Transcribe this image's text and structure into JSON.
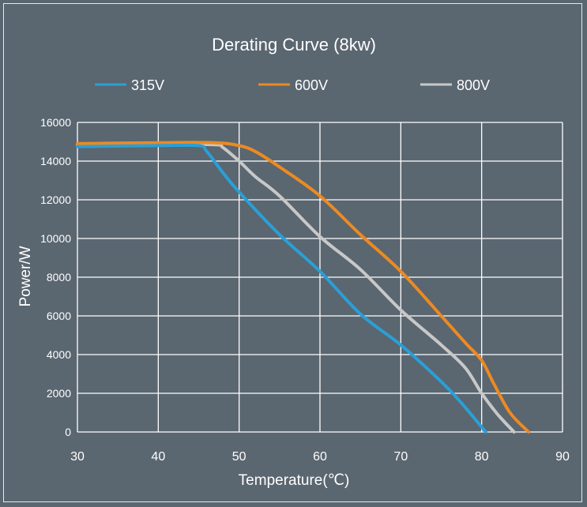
{
  "chart_data": {
    "type": "line",
    "title": "Derating Curve (8kw)",
    "xlabel": "Temperature(℃)",
    "ylabel": "Power/W",
    "xlim": [
      30,
      90
    ],
    "ylim": [
      0,
      16000
    ],
    "x_ticks": [
      "30",
      "40",
      "50",
      "60",
      "70",
      "80",
      "90"
    ],
    "y_ticks": [
      "0",
      "2000",
      "4000",
      "6000",
      "8000",
      "10000",
      "12000",
      "14000",
      "16000"
    ],
    "grid": true,
    "legend_position": "top",
    "series": [
      {
        "name": "315V",
        "color": "#2a9fd6",
        "points": [
          [
            30,
            14750
          ],
          [
            40,
            14800
          ],
          [
            45,
            14800
          ],
          [
            46,
            14500
          ],
          [
            48,
            13400
          ],
          [
            50,
            12400
          ],
          [
            55,
            10200
          ],
          [
            60,
            8300
          ],
          [
            65,
            6100
          ],
          [
            70,
            4500
          ],
          [
            75,
            2600
          ],
          [
            77.5,
            1500
          ],
          [
            80.5,
            0
          ]
        ]
      },
      {
        "name": "600V",
        "color": "#ec8a22",
        "points": [
          [
            30,
            14900
          ],
          [
            40,
            14950
          ],
          [
            47,
            14950
          ],
          [
            50,
            14800
          ],
          [
            52,
            14500
          ],
          [
            55,
            13700
          ],
          [
            60,
            12200
          ],
          [
            65,
            10200
          ],
          [
            70,
            8300
          ],
          [
            75,
            6000
          ],
          [
            78,
            4600
          ],
          [
            80,
            3700
          ],
          [
            81.5,
            2500
          ],
          [
            83.5,
            1000
          ],
          [
            85.8,
            0
          ]
        ]
      },
      {
        "name": "800V",
        "color": "#c8c8c8",
        "points": [
          [
            30,
            14800
          ],
          [
            40,
            14850
          ],
          [
            47,
            14850
          ],
          [
            48,
            14700
          ],
          [
            50,
            14000
          ],
          [
            52,
            13200
          ],
          [
            55,
            12200
          ],
          [
            60,
            10100
          ],
          [
            65,
            8400
          ],
          [
            70,
            6300
          ],
          [
            75,
            4500
          ],
          [
            78,
            3300
          ],
          [
            80,
            2000
          ],
          [
            82,
            900
          ],
          [
            84,
            0
          ]
        ]
      }
    ]
  }
}
